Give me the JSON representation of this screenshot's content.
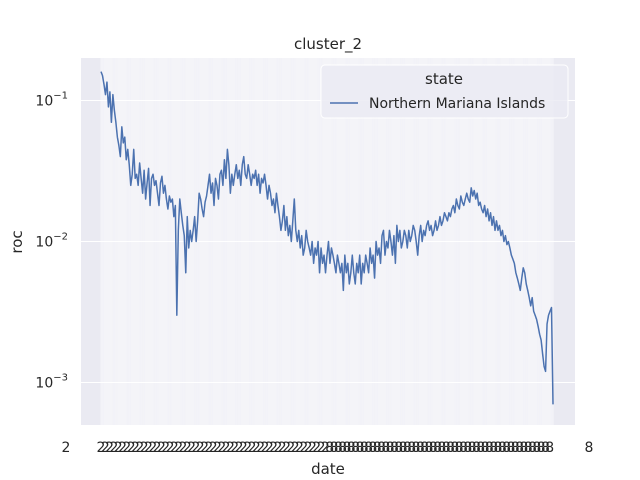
{
  "chart_data": {
    "type": "line",
    "title": "cluster_2",
    "xlabel": "date",
    "ylabel": "roc",
    "yscale": "log",
    "ylim": [
      0.0005,
      0.2
    ],
    "y_ticks": [
      {
        "value": 0.1,
        "base": "10",
        "exp": "−1"
      },
      {
        "value": 0.01,
        "base": "10",
        "exp": "−2"
      },
      {
        "value": 0.001,
        "base": "10",
        "exp": "−3"
      }
    ],
    "x_tick_count": 420,
    "x_tick_label_glyphs": [
      "2",
      "8"
    ],
    "grid": true,
    "legend": {
      "title": "state",
      "position": "upper right"
    },
    "series": [
      {
        "name": "Northern Mariana Islands",
        "color": "#4c72b0",
        "values": [
          0.16,
          0.15,
          0.13,
          0.11,
          0.135,
          0.09,
          0.115,
          0.07,
          0.11,
          0.085,
          0.07,
          0.055,
          0.048,
          0.04,
          0.065,
          0.05,
          0.055,
          0.038,
          0.045,
          0.035,
          0.025,
          0.03,
          0.045,
          0.028,
          0.03,
          0.025,
          0.036,
          0.028,
          0.022,
          0.032,
          0.02,
          0.026,
          0.033,
          0.018,
          0.028,
          0.03,
          0.025,
          0.027,
          0.022,
          0.018,
          0.026,
          0.029,
          0.022,
          0.025,
          0.02,
          0.017,
          0.021,
          0.019,
          0.02,
          0.015,
          0.018,
          0.003,
          0.012,
          0.02,
          0.016,
          0.013,
          0.011,
          0.006,
          0.015,
          0.009,
          0.012,
          0.01,
          0.012,
          0.015,
          0.01,
          0.014,
          0.022,
          0.02,
          0.017,
          0.015,
          0.019,
          0.021,
          0.025,
          0.03,
          0.022,
          0.026,
          0.018,
          0.028,
          0.025,
          0.02,
          0.03,
          0.032,
          0.025,
          0.038,
          0.028,
          0.045,
          0.035,
          0.022,
          0.03,
          0.025,
          0.03,
          0.035,
          0.028,
          0.032,
          0.025,
          0.035,
          0.04,
          0.03,
          0.028,
          0.035,
          0.03,
          0.025,
          0.03,
          0.028,
          0.032,
          0.025,
          0.03,
          0.022,
          0.028,
          0.026,
          0.03,
          0.025,
          0.02,
          0.025,
          0.022,
          0.018,
          0.02,
          0.016,
          0.022,
          0.018,
          0.015,
          0.012,
          0.014,
          0.018,
          0.012,
          0.015,
          0.011,
          0.013,
          0.01,
          0.014,
          0.02,
          0.012,
          0.01,
          0.012,
          0.009,
          0.011,
          0.008,
          0.009,
          0.012,
          0.01,
          0.009,
          0.008,
          0.01,
          0.007,
          0.009,
          0.008,
          0.01,
          0.006,
          0.009,
          0.007,
          0.008,
          0.006,
          0.008,
          0.01,
          0.007,
          0.009,
          0.008,
          0.007,
          0.006,
          0.008,
          0.007,
          0.006,
          0.007,
          0.0045,
          0.008,
          0.006,
          0.007,
          0.005,
          0.006,
          0.008,
          0.006,
          0.005,
          0.007,
          0.006,
          0.008,
          0.005,
          0.007,
          0.006,
          0.008,
          0.007,
          0.006,
          0.009,
          0.007,
          0.008,
          0.0055,
          0.01,
          0.008,
          0.009,
          0.007,
          0.011,
          0.012,
          0.008,
          0.01,
          0.009,
          0.012,
          0.01,
          0.008,
          0.011,
          0.007,
          0.013,
          0.01,
          0.012,
          0.009,
          0.01,
          0.012,
          0.011,
          0.009,
          0.012,
          0.01,
          0.011,
          0.013,
          0.012,
          0.01,
          0.008,
          0.011,
          0.013,
          0.01,
          0.012,
          0.011,
          0.013,
          0.014,
          0.012,
          0.013,
          0.011,
          0.012,
          0.014,
          0.012,
          0.013,
          0.015,
          0.013,
          0.014,
          0.016,
          0.015,
          0.014,
          0.016,
          0.015,
          0.017,
          0.018,
          0.016,
          0.02,
          0.018,
          0.017,
          0.021,
          0.019,
          0.018,
          0.02,
          0.022,
          0.02,
          0.019,
          0.024,
          0.021,
          0.023,
          0.02,
          0.022,
          0.018,
          0.019,
          0.017,
          0.016,
          0.018,
          0.015,
          0.017,
          0.014,
          0.016,
          0.013,
          0.015,
          0.012,
          0.014,
          0.012,
          0.013,
          0.011,
          0.012,
          0.01,
          0.011,
          0.0095,
          0.01,
          0.009,
          0.008,
          0.0075,
          0.007,
          0.006,
          0.0055,
          0.005,
          0.0045,
          0.0055,
          0.0065,
          0.006,
          0.005,
          0.0045,
          0.004,
          0.0035,
          0.004,
          0.0032,
          0.003,
          0.0028,
          0.0025,
          0.0022,
          0.002,
          0.0016,
          0.0013,
          0.0012,
          0.0026,
          0.003,
          0.0032,
          0.0034,
          0.0007
        ]
      }
    ]
  }
}
